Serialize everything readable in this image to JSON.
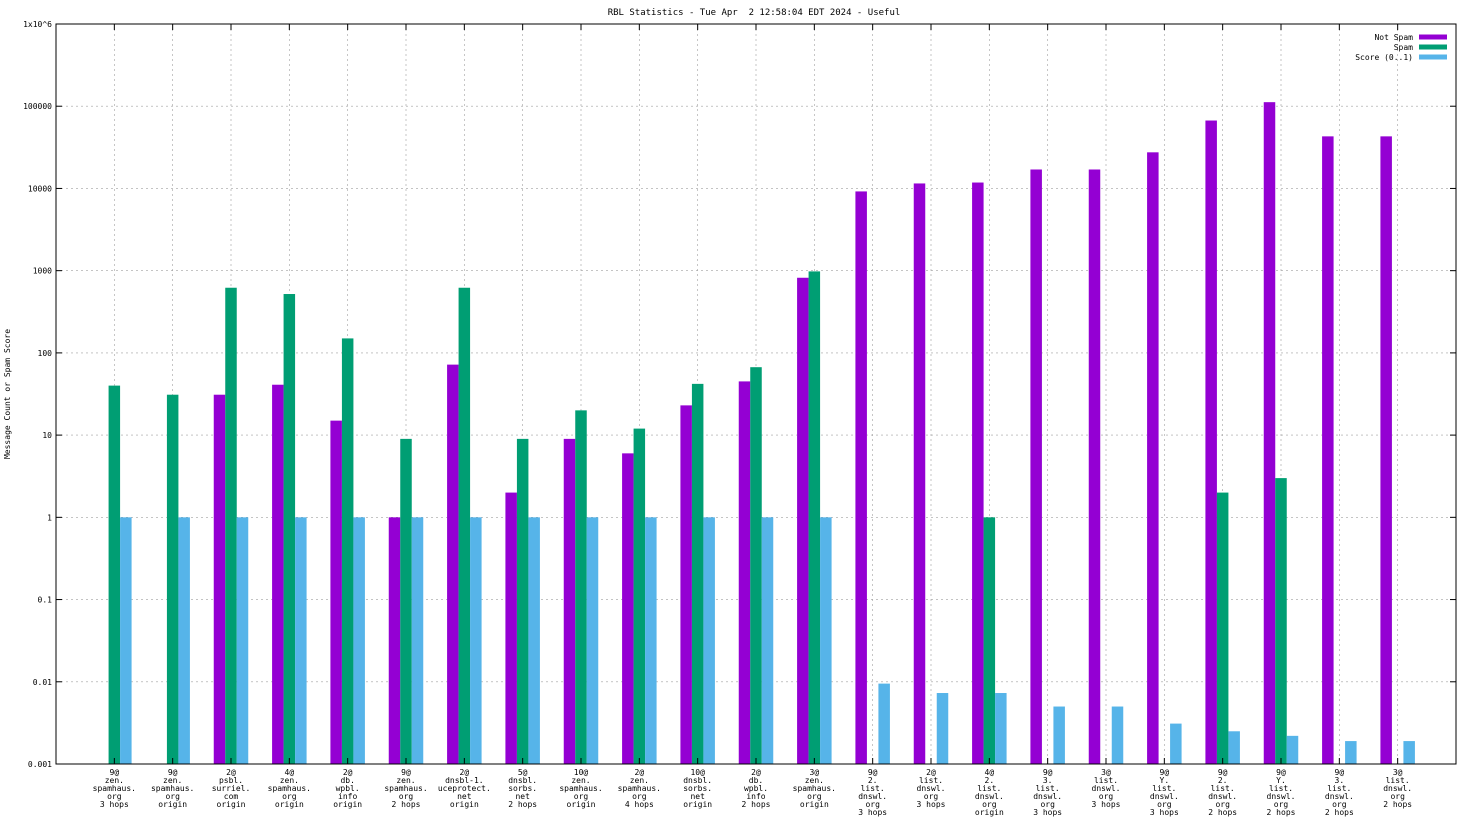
{
  "chart_data": {
    "type": "bar",
    "title": "RBL Statistics - Tue Apr  2 12:58:04 EDT 2024 - Useful",
    "ylabel": "Message Count or Spam Score",
    "xlabel": "",
    "yscale": "log",
    "ylim": [
      0.001,
      1000000.0
    ],
    "grid": true,
    "legend_position": "top-right",
    "y_ticks": [
      "0.001",
      "0.01",
      "0.1",
      "1",
      "10",
      "100",
      "1000",
      "10000",
      "100000",
      "1x10^6"
    ],
    "y_tick_values": [
      0.001,
      0.01,
      0.1,
      1,
      10,
      100,
      1000,
      10000,
      100000,
      1000000
    ],
    "categories": [
      [
        "9@",
        "zen.",
        "spamhaus.",
        "org",
        "3 hops"
      ],
      [
        "9@",
        "zen.",
        "spamhaus.",
        "org",
        "origin"
      ],
      [
        "2@",
        "psbl.",
        "surriel.",
        "com",
        "origin"
      ],
      [
        "4@",
        "zen.",
        "spamhaus.",
        "org",
        "origin"
      ],
      [
        "2@",
        "db.",
        "wpbl.",
        "info",
        "origin"
      ],
      [
        "9@",
        "zen.",
        "spamhaus.",
        "org",
        "2 hops"
      ],
      [
        "2@",
        "dnsbl-1.",
        "uceprotect.",
        "net",
        "origin"
      ],
      [
        "5@",
        "dnsbl.",
        "sorbs.",
        "net",
        "2 hops"
      ],
      [
        "10@",
        "zen.",
        "spamhaus.",
        "org",
        "origin"
      ],
      [
        "2@",
        "zen.",
        "spamhaus.",
        "org",
        "4 hops"
      ],
      [
        "10@",
        "dnsbl.",
        "sorbs.",
        "net",
        "origin"
      ],
      [
        "2@",
        "db.",
        "wpbl.",
        "info",
        "2 hops"
      ],
      [
        "3@",
        "zen.",
        "spamhaus.",
        "org",
        "origin"
      ],
      [
        "9@",
        "2.",
        "list.",
        "dnswl.",
        "org",
        "3 hops"
      ],
      [
        "2@",
        "list.",
        "dnswl.",
        "org",
        "3 hops"
      ],
      [
        "4@",
        "2.",
        "list.",
        "dnswl.",
        "org",
        "origin"
      ],
      [
        "9@",
        "3.",
        "list.",
        "dnswl.",
        "org",
        "3 hops"
      ],
      [
        "3@",
        "list.",
        "dnswl.",
        "org",
        "3 hops"
      ],
      [
        "9@",
        "Y.",
        "list.",
        "dnswl.",
        "org",
        "3 hops"
      ],
      [
        "9@",
        "2.",
        "list.",
        "dnswl.",
        "org",
        "2 hops"
      ],
      [
        "9@",
        "Y.",
        "list.",
        "dnswl.",
        "org",
        "2 hops"
      ],
      [
        "9@",
        "3.",
        "list.",
        "dnswl.",
        "org",
        "2 hops"
      ],
      [
        "3@",
        "list.",
        "dnswl.",
        "org",
        "2 hops"
      ]
    ],
    "series": [
      {
        "name": "Not Spam",
        "color": "#9400d3",
        "values": [
          null,
          null,
          31,
          41,
          15,
          1,
          72,
          2,
          9,
          6,
          23,
          45,
          820,
          9200,
          11500,
          11800,
          17000,
          17000,
          27500,
          67000,
          112000,
          43000,
          43000
        ]
      },
      {
        "name": "Spam",
        "color": "#009e73",
        "values": [
          40,
          31,
          620,
          520,
          150,
          9,
          620,
          9,
          20,
          12,
          42,
          67,
          980,
          null,
          null,
          1,
          null,
          null,
          null,
          2,
          3,
          null,
          null
        ]
      },
      {
        "name": "Score (0..1)",
        "color": "#56b4e9",
        "values": [
          1,
          1,
          1,
          1,
          1,
          1,
          1,
          1,
          1,
          1,
          1,
          1,
          1,
          0.0095,
          0.0073,
          0.0073,
          0.005,
          0.005,
          0.0031,
          0.0025,
          0.0022,
          0.0019,
          0.0019
        ]
      }
    ]
  }
}
